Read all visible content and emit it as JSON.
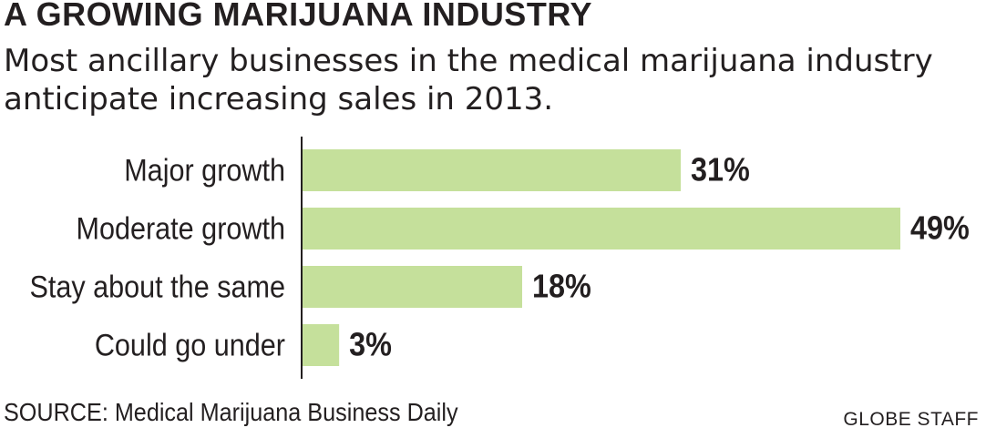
{
  "header": {
    "title": "A GROWING MARIJUANA INDUSTRY",
    "subtitle": "Most ancillary businesses in the medical marijuana industry anticipate increasing sales in 2013."
  },
  "footer": {
    "source": "SOURCE: Medical Marijuana Business Daily",
    "credit": "GLOBE STAFF"
  },
  "colors": {
    "bar": "#c5e09b",
    "text": "#231f20",
    "axis": "#231f20"
  },
  "chart_data": {
    "type": "bar",
    "orientation": "horizontal",
    "categories": [
      "Major growth",
      "Moderate growth",
      "Stay about the same",
      "Could go under"
    ],
    "values": [
      31,
      49,
      18,
      3
    ],
    "value_labels": [
      "31%",
      "49%",
      "18%",
      "3%"
    ],
    "title": "A GROWING MARIJUANA INDUSTRY",
    "subtitle": "Most ancillary businesses in the medical marijuana industry anticipate increasing sales in 2013.",
    "xlabel": "",
    "ylabel": "",
    "xlim": [
      0,
      49
    ],
    "grid": false,
    "legend": "none"
  }
}
